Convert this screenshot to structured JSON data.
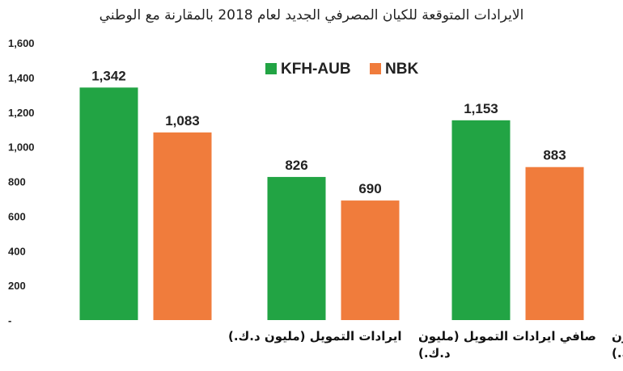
{
  "chart_data": {
    "type": "bar",
    "title": "الايرادات المتوقعة للكيان المصرفي الجديد لعام 2018 بالمقارنة مع الوطني",
    "categories": [
      "ايرادات التمويل (مليون د.ك.)",
      "صافي ايرادات التمويل (مليون د.ك.)",
      "اجمالي ايرادات التشغيل (مليون د.ك.)"
    ],
    "category_lines": [
      [
        "ايرادات التمويل (مليون د.ك.)"
      ],
      [
        "صافي ايرادات التمويل (مليون",
        "د.ك.)"
      ],
      [
        "اجمالي ايرادات التشغيل (مليون",
        "د.ك.)"
      ]
    ],
    "series": [
      {
        "name": "KFH-AUB",
        "color": "#22A444",
        "values": [
          1342,
          826,
          1153
        ],
        "labels": [
          "1,342",
          "826",
          "1,153"
        ]
      },
      {
        "name": "NBK",
        "color": "#F07C3C",
        "values": [
          1083,
          690,
          883
        ],
        "labels": [
          "1,083",
          "690",
          "883"
        ]
      }
    ],
    "ylim": [
      0,
      1600
    ],
    "yticks": [
      0,
      200,
      400,
      600,
      800,
      1000,
      1200,
      1400,
      1600
    ],
    "ytick_labels": [
      "-",
      "200",
      "400",
      "600",
      "800",
      "1,000",
      "1,200",
      "1,400",
      "1,600"
    ],
    "legend_position": "top-center",
    "grid": false
  }
}
